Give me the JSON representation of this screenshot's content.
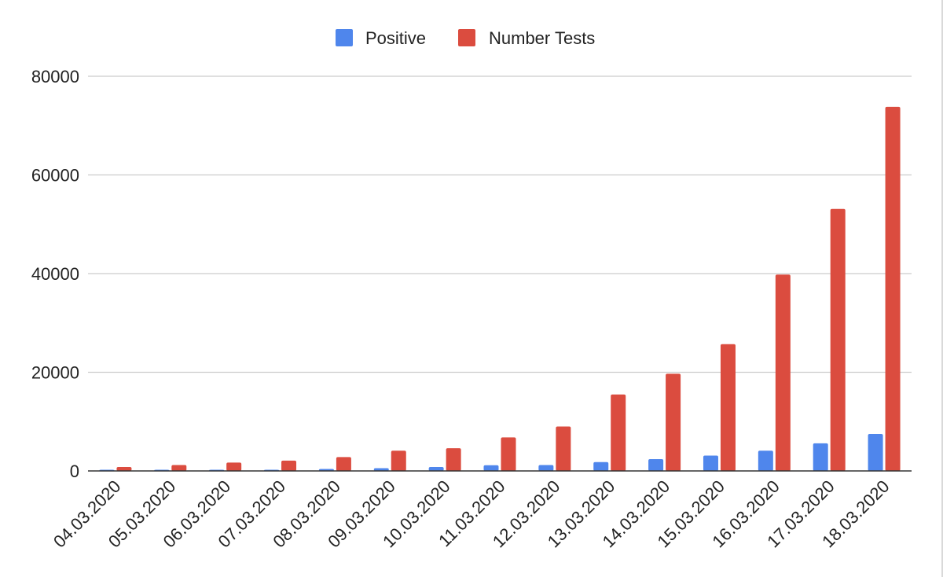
{
  "chart_data": {
    "type": "bar",
    "title": "",
    "xlabel": "",
    "ylabel": "",
    "categories": [
      "04.03.2020",
      "05.03.2020",
      "06.03.2020",
      "07.03.2020",
      "08.03.2020",
      "09.03.2020",
      "10.03.2020",
      "11.03.2020",
      "12.03.2020",
      "13.03.2020",
      "14.03.2020",
      "15.03.2020",
      "16.03.2020",
      "17.03.2020",
      "18.03.2020"
    ],
    "series": [
      {
        "name": "Positive",
        "color": "#4f86ec",
        "values": [
          40,
          100,
          150,
          240,
          400,
          550,
          800,
          1150,
          1200,
          1800,
          2400,
          3100,
          4100,
          5600,
          7500
        ]
      },
      {
        "name": "Number Tests",
        "color": "#db4c3f",
        "values": [
          800,
          1200,
          1700,
          2100,
          2800,
          4100,
          4600,
          6800,
          9000,
          15500,
          19700,
          25700,
          39800,
          53100,
          73800
        ]
      }
    ],
    "ylim": [
      0,
      80000
    ],
    "yticks": [
      0,
      20000,
      40000,
      60000,
      80000
    ],
    "grid": true,
    "legend_position": "top-center"
  }
}
